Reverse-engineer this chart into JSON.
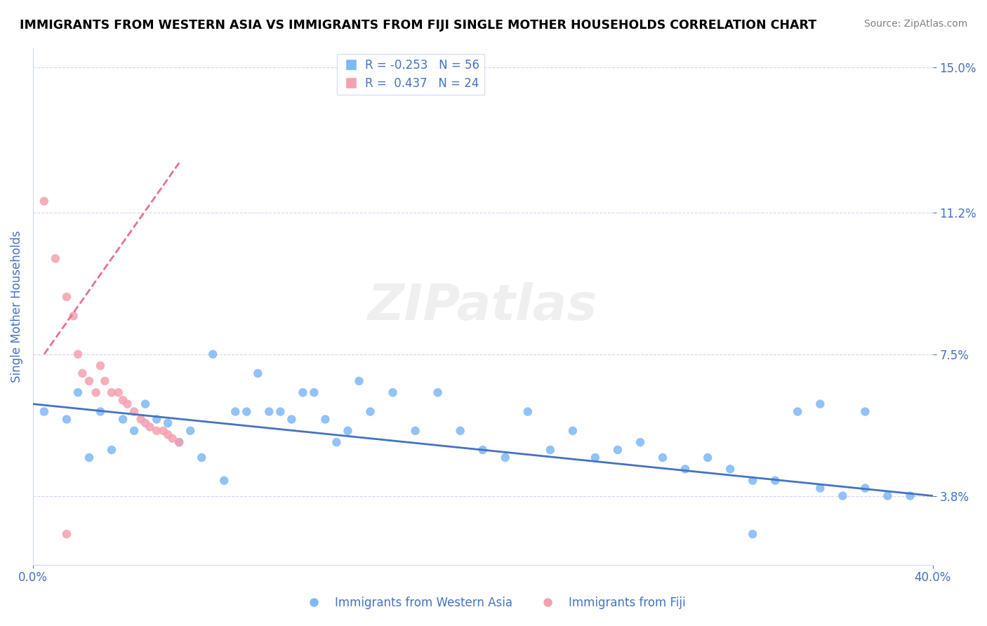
{
  "title": "IMMIGRANTS FROM WESTERN ASIA VS IMMIGRANTS FROM FIJI SINGLE MOTHER HOUSEHOLDS CORRELATION CHART",
  "source": "Source: ZipAtlas.com",
  "xlabel": "",
  "ylabel": "Single Mother Households",
  "watermark": "ZIPatlas",
  "xmin": 0.0,
  "xmax": 0.4,
  "ymin": 0.02,
  "ymax": 0.155,
  "yticks": [
    0.038,
    0.075,
    0.112,
    0.15
  ],
  "ytick_labels": [
    "3.8%",
    "7.5%",
    "11.2%",
    "15.0%"
  ],
  "xticks": [
    0.0,
    0.05,
    0.1,
    0.15,
    0.2,
    0.25,
    0.3,
    0.35,
    0.4
  ],
  "xtick_labels": [
    "0.0%",
    "",
    "",
    "",
    "",
    "",
    "",
    "",
    "40.0%"
  ],
  "legend_r1": "R = -0.253",
  "legend_n1": "N = 56",
  "legend_r2": "R =  0.437",
  "legend_n2": "N = 24",
  "color_blue": "#7EB8F7",
  "color_pink": "#F4A0B0",
  "color_trend_blue": "#4472C4",
  "color_trend_pink": "#E87090",
  "color_axis": "#4472C4",
  "color_grid": "#D0D8F0",
  "blue_x": [
    0.02,
    0.03,
    0.04,
    0.05,
    0.06,
    0.07,
    0.08,
    0.09,
    0.1,
    0.11,
    0.12,
    0.13,
    0.14,
    0.15,
    0.16,
    0.17,
    0.18,
    0.19,
    0.2,
    0.21,
    0.22,
    0.23,
    0.24,
    0.25,
    0.26,
    0.27,
    0.28,
    0.29,
    0.3,
    0.31,
    0.32,
    0.33,
    0.34,
    0.35,
    0.36,
    0.37,
    0.38,
    0.39,
    0.005,
    0.015,
    0.025,
    0.035,
    0.045,
    0.055,
    0.065,
    0.075,
    0.085,
    0.095,
    0.105,
    0.115,
    0.125,
    0.135,
    0.145,
    0.35,
    0.37,
    0.32
  ],
  "blue_y": [
    0.065,
    0.06,
    0.058,
    0.062,
    0.057,
    0.055,
    0.075,
    0.06,
    0.07,
    0.06,
    0.065,
    0.058,
    0.055,
    0.06,
    0.065,
    0.055,
    0.065,
    0.055,
    0.05,
    0.048,
    0.06,
    0.05,
    0.055,
    0.048,
    0.05,
    0.052,
    0.048,
    0.045,
    0.048,
    0.045,
    0.042,
    0.042,
    0.06,
    0.04,
    0.038,
    0.04,
    0.038,
    0.038,
    0.06,
    0.058,
    0.048,
    0.05,
    0.055,
    0.058,
    0.052,
    0.048,
    0.042,
    0.06,
    0.06,
    0.058,
    0.065,
    0.052,
    0.068,
    0.062,
    0.06,
    0.028
  ],
  "pink_x": [
    0.005,
    0.01,
    0.015,
    0.018,
    0.02,
    0.022,
    0.025,
    0.028,
    0.03,
    0.032,
    0.035,
    0.038,
    0.04,
    0.042,
    0.045,
    0.048,
    0.05,
    0.052,
    0.055,
    0.058,
    0.06,
    0.062,
    0.065,
    0.015
  ],
  "pink_y": [
    0.115,
    0.1,
    0.09,
    0.085,
    0.075,
    0.07,
    0.068,
    0.065,
    0.072,
    0.068,
    0.065,
    0.065,
    0.063,
    0.062,
    0.06,
    0.058,
    0.057,
    0.056,
    0.055,
    0.055,
    0.054,
    0.053,
    0.052,
    0.028
  ],
  "blue_trend_x": [
    0.0,
    0.4
  ],
  "blue_trend_y": [
    0.062,
    0.038
  ],
  "pink_trend_x": [
    0.005,
    0.065
  ],
  "pink_trend_y": [
    0.075,
    0.125
  ]
}
